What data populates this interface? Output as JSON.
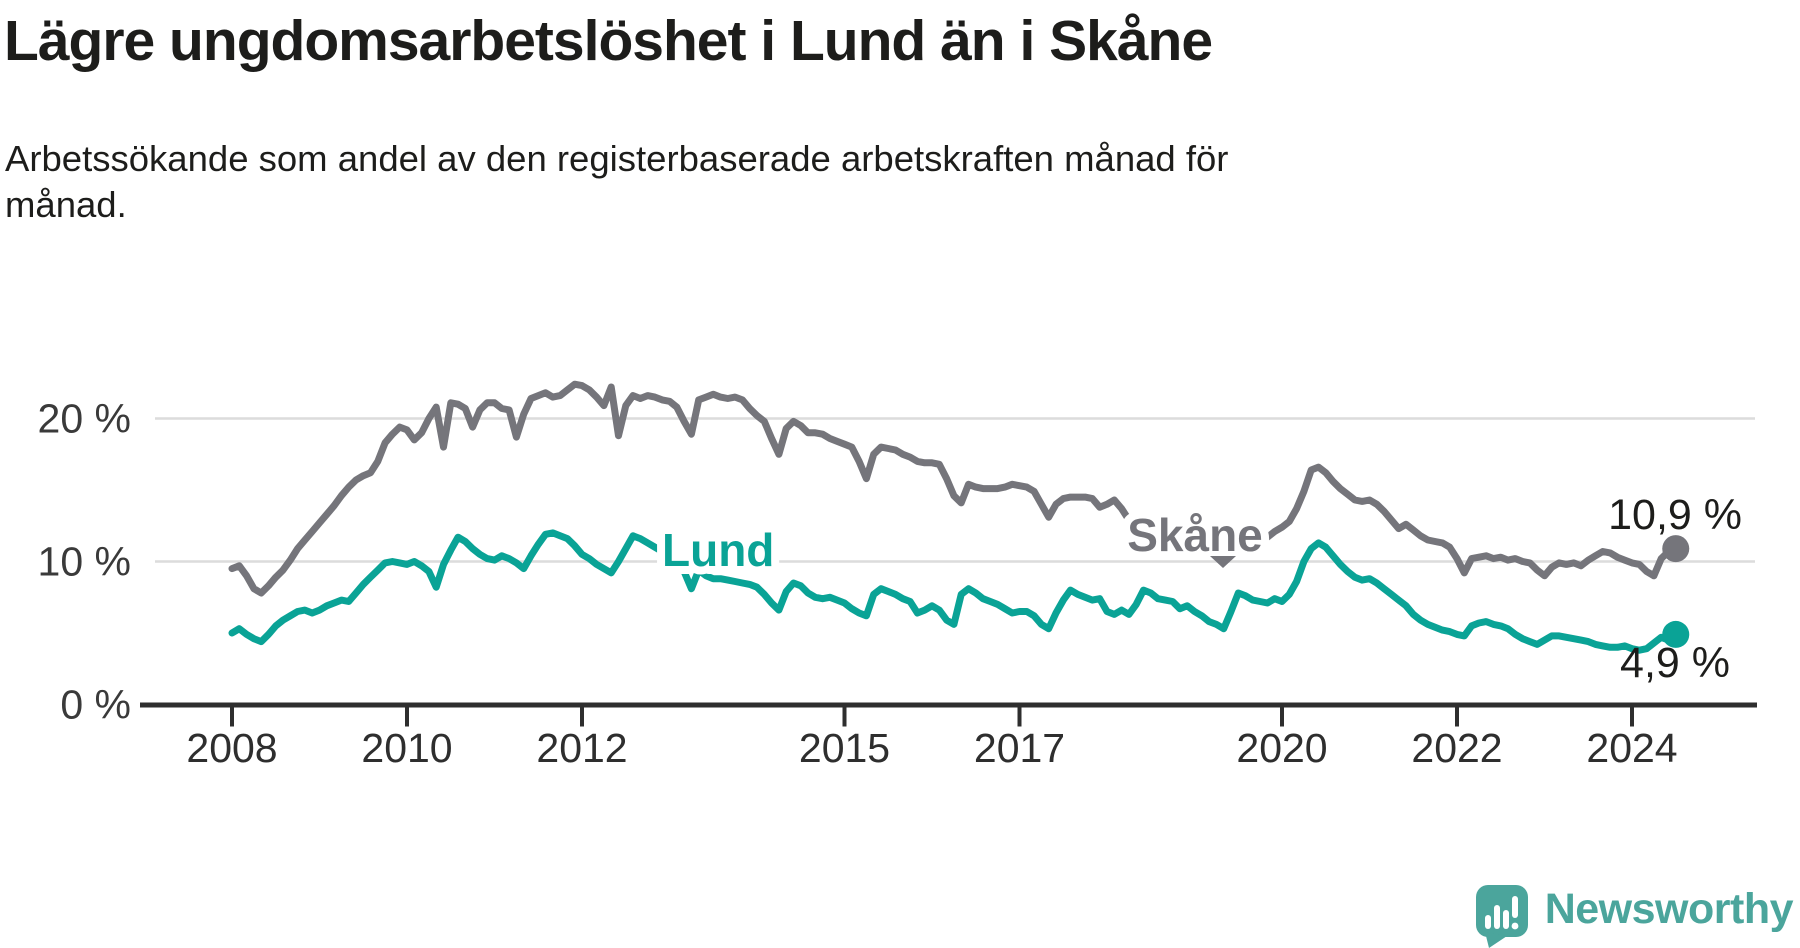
{
  "title": "Lägre ungdomsarbetslöshet i Lund än i Skåne",
  "subtitle_line1": "Arbetssökande som andel av den registerbaserade arbetskraften månad för",
  "subtitle_line2": "månad.",
  "branding": {
    "logo_text": "Newsworthy",
    "logo_color": "#4ba59c"
  },
  "chart_data": {
    "type": "line",
    "title": "Lägre ungdomsarbetslöshet i Lund än i Skåne",
    "subtitle": "Arbetssökande som andel av den registerbaserade arbetskraften månad för månad.",
    "unit": "%",
    "x_start": "2008-01",
    "x_end": "2024-07",
    "x_frequency": "monthly",
    "xticks": [
      2008,
      2010,
      2012,
      2015,
      2017,
      2020,
      2022,
      2024
    ],
    "yticks_labels": [
      "0 %",
      "10 %",
      "20 %"
    ],
    "yticks_values": [
      0,
      10,
      20
    ],
    "ylim": [
      0,
      23.5
    ],
    "grid": "horizontal",
    "legend": "inline-labels",
    "colors": {
      "skane_line": "#75757b",
      "lund_line": "#0aa396",
      "gridline": "#dcdcdc",
      "axis": "#2e2e2e",
      "tick_label": "#2e2e2e",
      "value_label": "#1d1d1b"
    },
    "series": [
      {
        "name": "Skåne",
        "color": "#75757b",
        "end_label": "10,9 %",
        "end_value": 10.9,
        "values": [
          9.5,
          9.7,
          9.0,
          8.1,
          7.8,
          8.3,
          8.9,
          9.4,
          10.1,
          10.9,
          11.5,
          12.1,
          12.7,
          13.3,
          13.9,
          14.6,
          15.2,
          15.7,
          16.0,
          16.2,
          17.0,
          18.3,
          18.9,
          19.4,
          19.2,
          18.5,
          19.0,
          20.0,
          20.8,
          18.0,
          21.1,
          21.0,
          20.7,
          19.4,
          20.6,
          21.1,
          21.1,
          20.7,
          20.6,
          18.7,
          20.3,
          21.4,
          21.6,
          21.8,
          21.5,
          21.6,
          22.0,
          22.4,
          22.3,
          22.0,
          21.5,
          20.9,
          22.2,
          18.8,
          20.9,
          21.6,
          21.4,
          21.6,
          21.5,
          21.3,
          21.2,
          20.8,
          19.8,
          18.9,
          21.3,
          21.5,
          21.7,
          21.5,
          21.4,
          21.5,
          21.3,
          20.7,
          20.2,
          19.8,
          18.6,
          17.5,
          19.3,
          19.8,
          19.5,
          19.0,
          19.0,
          18.9,
          18.6,
          18.4,
          18.2,
          18.0,
          17.0,
          15.8,
          17.5,
          18.0,
          17.9,
          17.8,
          17.5,
          17.3,
          17.0,
          16.9,
          16.9,
          16.8,
          15.8,
          14.6,
          14.1,
          15.4,
          15.2,
          15.1,
          15.1,
          15.1,
          15.2,
          15.4,
          15.3,
          15.2,
          14.9,
          14.0,
          13.1,
          14.0,
          14.4,
          14.5,
          14.5,
          14.5,
          14.4,
          13.8,
          14.0,
          14.3,
          13.7,
          12.9,
          12.4,
          12.1,
          12.0,
          11.9,
          11.9,
          11.9,
          11.8,
          11.8,
          11.8,
          11.7,
          11.6,
          11.5,
          11.6,
          11.8,
          11.9,
          11.9,
          12.0,
          12.1,
          11.7,
          12.1,
          12.4,
          12.8,
          13.7,
          14.9,
          16.4,
          16.6,
          16.2,
          15.6,
          15.1,
          14.7,
          14.3,
          14.2,
          14.3,
          14.0,
          13.5,
          12.9,
          12.3,
          12.6,
          12.2,
          11.8,
          11.5,
          11.4,
          11.3,
          11.0,
          10.2,
          9.2,
          10.2,
          10.3,
          10.4,
          10.2,
          10.3,
          10.1,
          10.2,
          10.0,
          9.9,
          9.4,
          9.0,
          9.6,
          9.9,
          9.8,
          9.9,
          9.7,
          10.1,
          10.4,
          10.7,
          10.6,
          10.3,
          10.1,
          9.9,
          9.8,
          9.3,
          9.0,
          10.2,
          10.7,
          10.9
        ]
      },
      {
        "name": "Lund",
        "color": "#0aa396",
        "end_label": "4,9 %",
        "end_value": 4.9,
        "values": [
          5.0,
          5.3,
          4.9,
          4.6,
          4.4,
          4.9,
          5.5,
          5.9,
          6.2,
          6.5,
          6.6,
          6.4,
          6.6,
          6.9,
          7.1,
          7.3,
          7.2,
          7.8,
          8.4,
          8.9,
          9.4,
          9.9,
          10.0,
          9.9,
          9.8,
          10.0,
          9.7,
          9.3,
          8.2,
          9.8,
          10.8,
          11.7,
          11.4,
          10.9,
          10.5,
          10.2,
          10.1,
          10.4,
          10.2,
          9.9,
          9.5,
          10.4,
          11.2,
          11.9,
          12.0,
          11.8,
          11.6,
          11.1,
          10.5,
          10.2,
          9.8,
          9.5,
          9.2,
          10.0,
          10.9,
          11.8,
          11.6,
          11.3,
          11.0,
          10.7,
          10.3,
          9.9,
          9.3,
          8.1,
          9.4,
          9.0,
          8.8,
          8.8,
          8.7,
          8.6,
          8.5,
          8.4,
          8.2,
          7.7,
          7.1,
          6.6,
          7.9,
          8.5,
          8.3,
          7.8,
          7.5,
          7.4,
          7.5,
          7.3,
          7.1,
          6.7,
          6.4,
          6.2,
          7.7,
          8.1,
          7.9,
          7.7,
          7.4,
          7.2,
          6.4,
          6.6,
          6.9,
          6.6,
          5.9,
          5.6,
          7.7,
          8.1,
          7.8,
          7.4,
          7.2,
          7.0,
          6.7,
          6.4,
          6.5,
          6.5,
          6.2,
          5.6,
          5.3,
          6.4,
          7.3,
          8.0,
          7.7,
          7.5,
          7.3,
          7.4,
          6.5,
          6.3,
          6.6,
          6.3,
          7.0,
          8.0,
          7.8,
          7.4,
          7.3,
          7.2,
          6.7,
          6.9,
          6.5,
          6.2,
          5.8,
          5.6,
          5.3,
          6.5,
          7.8,
          7.6,
          7.3,
          7.2,
          7.1,
          7.4,
          7.2,
          7.7,
          8.6,
          10.0,
          10.9,
          11.3,
          11.0,
          10.4,
          9.8,
          9.3,
          8.9,
          8.7,
          8.8,
          8.5,
          8.1,
          7.7,
          7.3,
          6.9,
          6.3,
          5.9,
          5.6,
          5.4,
          5.2,
          5.1,
          4.9,
          4.8,
          5.5,
          5.7,
          5.8,
          5.6,
          5.5,
          5.3,
          4.9,
          4.6,
          4.4,
          4.2,
          4.5,
          4.8,
          4.8,
          4.7,
          4.6,
          4.5,
          4.4,
          4.2,
          4.1,
          4.0,
          4.0,
          4.1,
          3.9,
          3.8,
          3.9,
          4.3,
          4.7,
          4.5,
          4.9
        ]
      }
    ]
  }
}
